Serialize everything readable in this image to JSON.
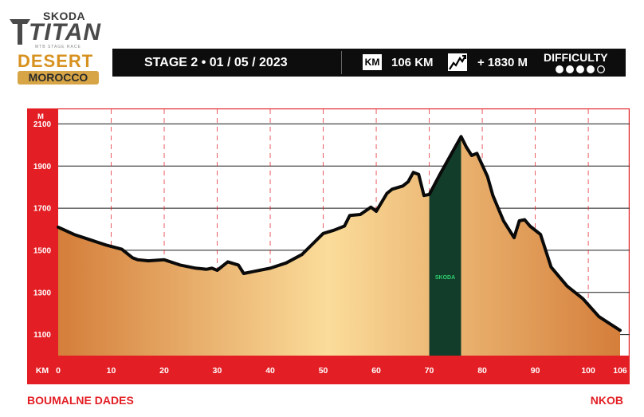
{
  "logo": {
    "brand": "SKODA",
    "event": "TITAN",
    "tagline": "MTB STAGE RACE",
    "edition": "DESERT",
    "country": "MOROCCO"
  },
  "stage_banner": {
    "stage": "STAGE 2 • 01 / 05 / 2023",
    "distance_unit": "KM",
    "distance": "106 KM",
    "climbing": "+ 1830 M",
    "difficulty_label": "DIFFICULTY",
    "difficulty_level": 4,
    "difficulty_max": 5,
    "climb_icon": "mountain-climb-icon"
  },
  "route": {
    "start": "BOUMALNE DADES",
    "finish": "NKOB"
  },
  "colors": {
    "accent_red": "#e31e24",
    "profile_fill_light": "#fbdc9a",
    "profile_fill_dark": "#d47e3a",
    "sponsor_zone": "#123d2a",
    "sponsor_text": "#2fd06f"
  },
  "chart_data": {
    "type": "area",
    "y_unit": "M",
    "x_unit": "KM",
    "ylim": [
      1000,
      2200
    ],
    "xlim": [
      0,
      106
    ],
    "y_ticks": [
      1100,
      1300,
      1500,
      1700,
      1900,
      2100
    ],
    "x_ticks": [
      0,
      10,
      20,
      30,
      40,
      50,
      60,
      70,
      80,
      90,
      100,
      106
    ],
    "grid": true,
    "sponsor_zone": {
      "label": "SKODA",
      "from_km": 70,
      "to_km": 76
    },
    "x": [
      0,
      3,
      6,
      9,
      12,
      14,
      15,
      17,
      20,
      23,
      26,
      28,
      29,
      30,
      32,
      34,
      35,
      37,
      40,
      43,
      46,
      48,
      50,
      52,
      54,
      55,
      57,
      59,
      60,
      62,
      63,
      65,
      66,
      67,
      68,
      69,
      70,
      72,
      74,
      76,
      77,
      78,
      79,
      81,
      82,
      84,
      86,
      87,
      88,
      89,
      91,
      93,
      96,
      99,
      102,
      106
    ],
    "y": [
      1610,
      1575,
      1550,
      1525,
      1505,
      1465,
      1455,
      1450,
      1455,
      1430,
      1415,
      1410,
      1415,
      1405,
      1445,
      1430,
      1390,
      1400,
      1415,
      1440,
      1480,
      1530,
      1580,
      1595,
      1615,
      1665,
      1670,
      1705,
      1685,
      1770,
      1790,
      1805,
      1825,
      1870,
      1860,
      1760,
      1765,
      1860,
      1950,
      2040,
      1990,
      1950,
      1960,
      1850,
      1760,
      1640,
      1560,
      1640,
      1645,
      1615,
      1575,
      1420,
      1330,
      1270,
      1185,
      1120
    ]
  }
}
